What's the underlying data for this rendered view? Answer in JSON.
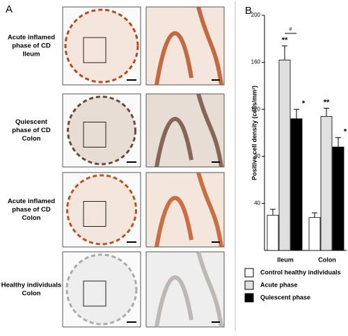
{
  "panel_a": {
    "label": "A",
    "rows": [
      {
        "lines": [
          "Acute inflamed",
          "phase of CD",
          "Ileum"
        ]
      },
      {
        "lines": [
          "Quiescent",
          "phase of CD",
          "Colon"
        ]
      },
      {
        "lines": [
          "Acute inflamed",
          "phase of CD",
          "Colon"
        ]
      },
      {
        "lines": [
          "Healthy individuals",
          "Colon"
        ]
      }
    ]
  },
  "chart_data": {
    "type": "bar",
    "panel_label": "B",
    "ylabel": "Positive cell density (cells/mm²)",
    "categories": [
      "Ileum",
      "Colon"
    ],
    "series": [
      {
        "name": "Control healthy individuals",
        "color": "#ffffff",
        "values": [
          30,
          28
        ],
        "errors": [
          5,
          4
        ],
        "marks": [
          null,
          null
        ]
      },
      {
        "name": "Acute phase",
        "color": "#e0e0e0",
        "values": [
          162,
          114
        ],
        "errors": [
          12,
          7
        ],
        "marks": [
          "**",
          "**"
        ]
      },
      {
        "name": "Quiescent phase",
        "color": "#000000",
        "values": [
          112,
          88
        ],
        "errors": [
          8,
          8
        ],
        "marks": [
          "*",
          "*"
        ]
      }
    ],
    "annotation": "#",
    "ylim": [
      0,
      200
    ],
    "yticks": [
      40,
      80,
      120,
      160,
      200
    ]
  }
}
